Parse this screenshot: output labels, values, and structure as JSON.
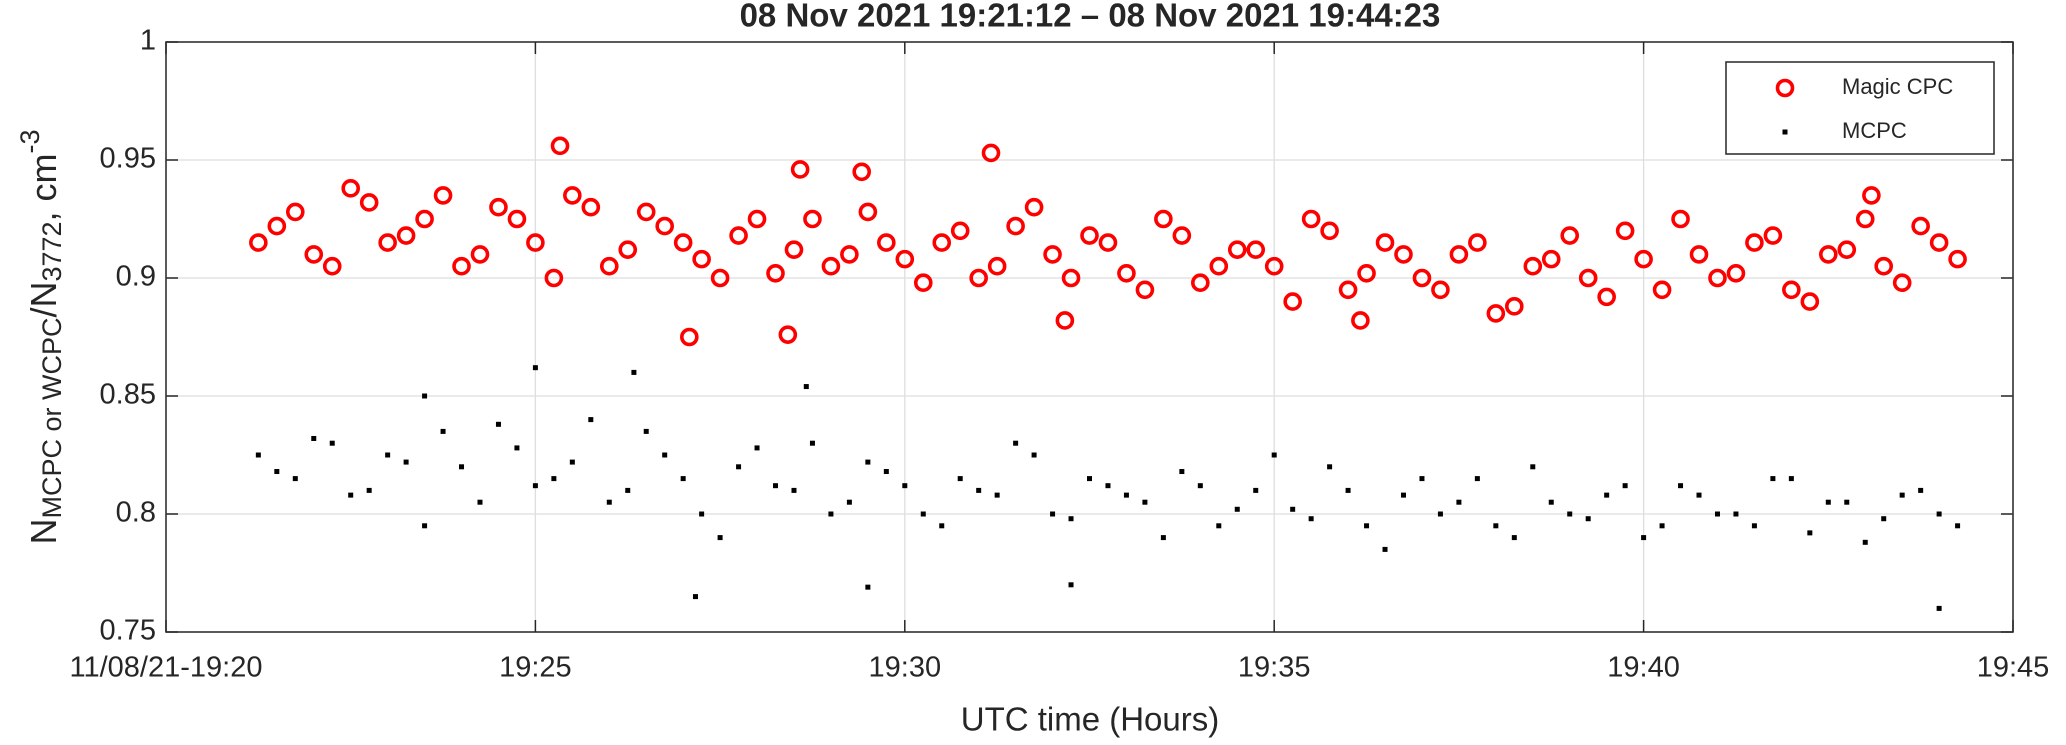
{
  "chart_data": {
    "type": "scatter",
    "title": "08 Nov 2021 19:21:12 – 08 Nov 2021 19:44:23",
    "xlabel": "UTC time (Hours)",
    "ylabel_parts": [
      "N",
      "MCPC or WCPC",
      "/N",
      "3772",
      ", cm",
      "-3"
    ],
    "xlim": [
      "19:20",
      "19:45"
    ],
    "xticks": [
      {
        "value": "19:20",
        "label": "11/08/21-19:20"
      },
      "19:25",
      "19:30",
      "19:35",
      "19:40",
      "19:45"
    ],
    "ylim": [
      0.75,
      1
    ],
    "yticks": [
      0.75,
      0.8,
      0.85,
      0.9,
      0.95,
      1
    ],
    "grid": true,
    "legend": "upper right",
    "series": [
      {
        "name": "Magic CPC",
        "color": "#ff0000",
        "marker": "circle",
        "x": [
          "19:21:15",
          "19:21:45",
          "19:22:15",
          "19:22:45",
          "19:23:15",
          "19:23:45",
          "19:24:15",
          "19:24:45",
          "19:25:15",
          "19:25:45",
          "19:26:15",
          "19:26:45",
          "19:27:15",
          "19:27:45",
          "19:28:15",
          "19:28:45",
          "19:29:15",
          "19:29:45",
          "19:30:15",
          "19:30:45",
          "19:31:15",
          "19:31:45",
          "19:32:15",
          "19:32:45",
          "19:33:15",
          "19:33:45",
          "19:34:15",
          "19:34:45",
          "19:35:15",
          "19:35:45",
          "19:36:15",
          "19:36:45",
          "19:37:15",
          "19:37:45",
          "19:38:15",
          "19:38:45",
          "19:39:15",
          "19:39:45",
          "19:40:15",
          "19:40:45",
          "19:41:15",
          "19:41:45",
          "19:42:15",
          "19:42:45",
          "19:43:15",
          "19:43:45",
          "19:44:15",
          "19:21:30",
          "19:22:00",
          "19:22:30",
          "19:23:00",
          "19:23:30",
          "19:24:00",
          "19:24:30",
          "19:25:00",
          "19:25:30",
          "19:26:00",
          "19:26:30",
          "19:27:00",
          "19:27:30",
          "19:28:00",
          "19:28:30",
          "19:29:00",
          "19:29:30",
          "19:30:00",
          "19:30:30",
          "19:31:00",
          "19:31:30",
          "19:32:00",
          "19:32:30",
          "19:33:00",
          "19:33:30",
          "19:34:00",
          "19:34:30",
          "19:35:00",
          "19:35:30",
          "19:36:00",
          "19:36:30",
          "19:37:00",
          "19:37:30",
          "19:38:00",
          "19:38:30",
          "19:39:00",
          "19:39:30",
          "19:40:00",
          "19:40:30",
          "19:41:00",
          "19:41:30",
          "19:42:00",
          "19:42:30",
          "19:43:00",
          "19:43:30",
          "19:44:00",
          "19:25:20",
          "19:27:05",
          "19:28:25",
          "19:28:35",
          "19:29:25",
          "19:31:10",
          "19:32:10",
          "19:43:05",
          "19:36:10"
        ],
        "values": [
          0.915,
          0.928,
          0.905,
          0.932,
          0.918,
          0.935,
          0.91,
          0.925,
          0.9,
          0.93,
          0.912,
          0.922,
          0.908,
          0.918,
          0.902,
          0.925,
          0.91,
          0.915,
          0.898,
          0.92,
          0.905,
          0.93,
          0.9,
          0.915,
          0.895,
          0.918,
          0.905,
          0.912,
          0.89,
          0.92,
          0.902,
          0.91,
          0.895,
          0.915,
          0.888,
          0.908,
          0.9,
          0.92,
          0.895,
          0.91,
          0.902,
          0.918,
          0.89,
          0.912,
          0.905,
          0.922,
          0.908,
          0.922,
          0.91,
          0.938,
          0.915,
          0.925,
          0.905,
          0.93,
          0.915,
          0.935,
          0.905,
          0.928,
          0.915,
          0.9,
          0.925,
          0.912,
          0.905,
          0.928,
          0.908,
          0.915,
          0.9,
          0.922,
          0.91,
          0.918,
          0.902,
          0.925,
          0.898,
          0.912,
          0.905,
          0.925,
          0.895,
          0.915,
          0.9,
          0.91,
          0.885,
          0.905,
          0.918,
          0.892,
          0.908,
          0.925,
          0.9,
          0.915,
          0.895,
          0.91,
          0.925,
          0.898,
          0.915,
          0.956,
          0.875,
          0.876,
          0.946,
          0.945,
          0.953,
          0.882,
          0.935,
          0.882
        ]
      },
      {
        "name": "MCPC",
        "color": "#000000",
        "marker": "square",
        "x": [
          "19:21:15",
          "19:21:45",
          "19:22:15",
          "19:22:45",
          "19:23:15",
          "19:23:45",
          "19:24:15",
          "19:24:45",
          "19:25:15",
          "19:25:45",
          "19:26:15",
          "19:26:45",
          "19:27:15",
          "19:27:45",
          "19:28:15",
          "19:28:45",
          "19:29:15",
          "19:29:45",
          "19:30:15",
          "19:30:45",
          "19:31:15",
          "19:31:45",
          "19:32:15",
          "19:32:45",
          "19:33:15",
          "19:33:45",
          "19:34:15",
          "19:34:45",
          "19:35:15",
          "19:35:45",
          "19:36:15",
          "19:36:45",
          "19:37:15",
          "19:37:45",
          "19:38:15",
          "19:38:45",
          "19:39:15",
          "19:39:45",
          "19:40:15",
          "19:40:45",
          "19:41:15",
          "19:41:45",
          "19:42:15",
          "19:42:45",
          "19:43:15",
          "19:43:45",
          "19:44:15",
          "19:21:30",
          "19:22:00",
          "19:22:30",
          "19:23:00",
          "19:23:30",
          "19:24:00",
          "19:24:30",
          "19:25:00",
          "19:25:30",
          "19:26:00",
          "19:26:30",
          "19:27:00",
          "19:27:30",
          "19:28:00",
          "19:28:30",
          "19:29:00",
          "19:29:30",
          "19:30:00",
          "19:30:30",
          "19:31:00",
          "19:31:30",
          "19:32:00",
          "19:32:30",
          "19:33:00",
          "19:33:30",
          "19:34:00",
          "19:34:30",
          "19:35:00",
          "19:35:30",
          "19:36:00",
          "19:36:30",
          "19:37:00",
          "19:37:30",
          "19:38:00",
          "19:38:30",
          "19:39:00",
          "19:39:30",
          "19:40:00",
          "19:40:30",
          "19:41:00",
          "19:41:30",
          "19:42:00",
          "19:42:30",
          "19:43:00",
          "19:43:30",
          "19:44:00",
          "19:25:00",
          "19:26:20",
          "19:27:10",
          "19:28:40",
          "19:29:30",
          "19:32:15",
          "19:44:00",
          "19:23:30"
        ],
        "values": [
          0.825,
          0.815,
          0.83,
          0.81,
          0.822,
          0.835,
          0.805,
          0.828,
          0.815,
          0.84,
          0.81,
          0.825,
          0.8,
          0.82,
          0.812,
          0.83,
          0.805,
          0.818,
          0.8,
          0.815,
          0.808,
          0.825,
          0.798,
          0.812,
          0.805,
          0.818,
          0.795,
          0.81,
          0.802,
          0.82,
          0.795,
          0.808,
          0.8,
          0.815,
          0.79,
          0.805,
          0.798,
          0.812,
          0.795,
          0.808,
          0.8,
          0.815,
          0.792,
          0.805,
          0.798,
          0.81,
          0.795,
          0.818,
          0.832,
          0.808,
          0.825,
          0.795,
          0.82,
          0.838,
          0.812,
          0.822,
          0.805,
          0.835,
          0.815,
          0.79,
          0.828,
          0.81,
          0.8,
          0.822,
          0.812,
          0.795,
          0.81,
          0.83,
          0.8,
          0.815,
          0.808,
          0.79,
          0.812,
          0.802,
          0.825,
          0.798,
          0.81,
          0.785,
          0.815,
          0.805,
          0.795,
          0.82,
          0.8,
          0.808,
          0.79,
          0.812,
          0.8,
          0.795,
          0.815,
          0.805,
          0.788,
          0.808,
          0.8,
          0.862,
          0.86,
          0.765,
          0.854,
          0.769,
          0.77,
          0.76,
          0.85
        ]
      }
    ]
  }
}
